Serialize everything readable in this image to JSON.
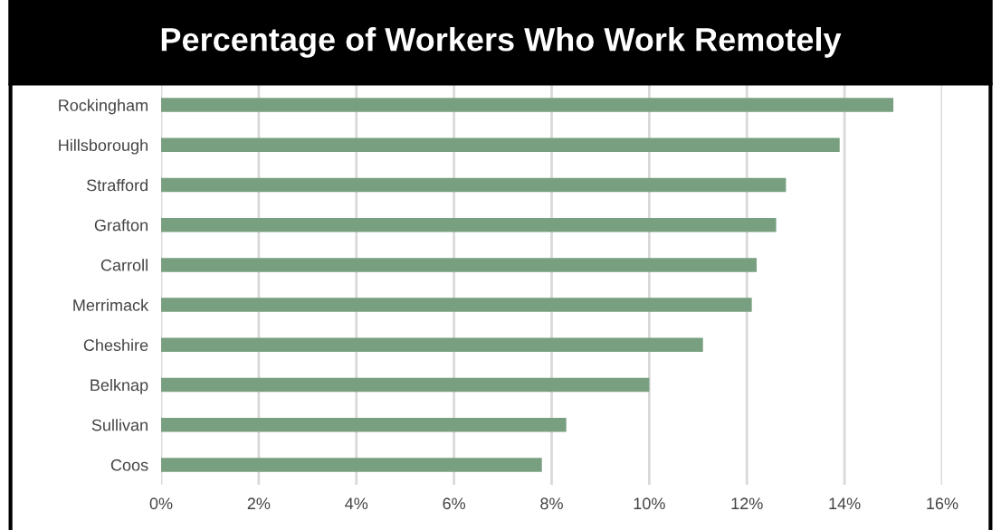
{
  "chart_data": {
    "type": "bar",
    "orientation": "horizontal",
    "title": "Percentage of Workers Who Work Remotely",
    "categories": [
      "Rockingham",
      "Hillsborough",
      "Strafford",
      "Grafton",
      "Carroll",
      "Merrimack",
      "Cheshire",
      "Belknap",
      "Sullivan",
      "Coos"
    ],
    "values": [
      15.0,
      13.9,
      12.8,
      12.6,
      12.2,
      12.1,
      11.1,
      10.0,
      8.3,
      7.8
    ],
    "color": "#789f80",
    "xlim": [
      0,
      16
    ],
    "xticks": [
      {
        "value": 0,
        "label": "0%"
      },
      {
        "value": 2,
        "label": "2%"
      },
      {
        "value": 4,
        "label": "4%"
      },
      {
        "value": 6,
        "label": "6%"
      },
      {
        "value": 8,
        "label": "8%"
      },
      {
        "value": 10,
        "label": "10%"
      },
      {
        "value": 12,
        "label": "12%"
      },
      {
        "value": 14,
        "label": "14%"
      },
      {
        "value": 16,
        "label": "16%"
      }
    ],
    "grid": "x"
  }
}
